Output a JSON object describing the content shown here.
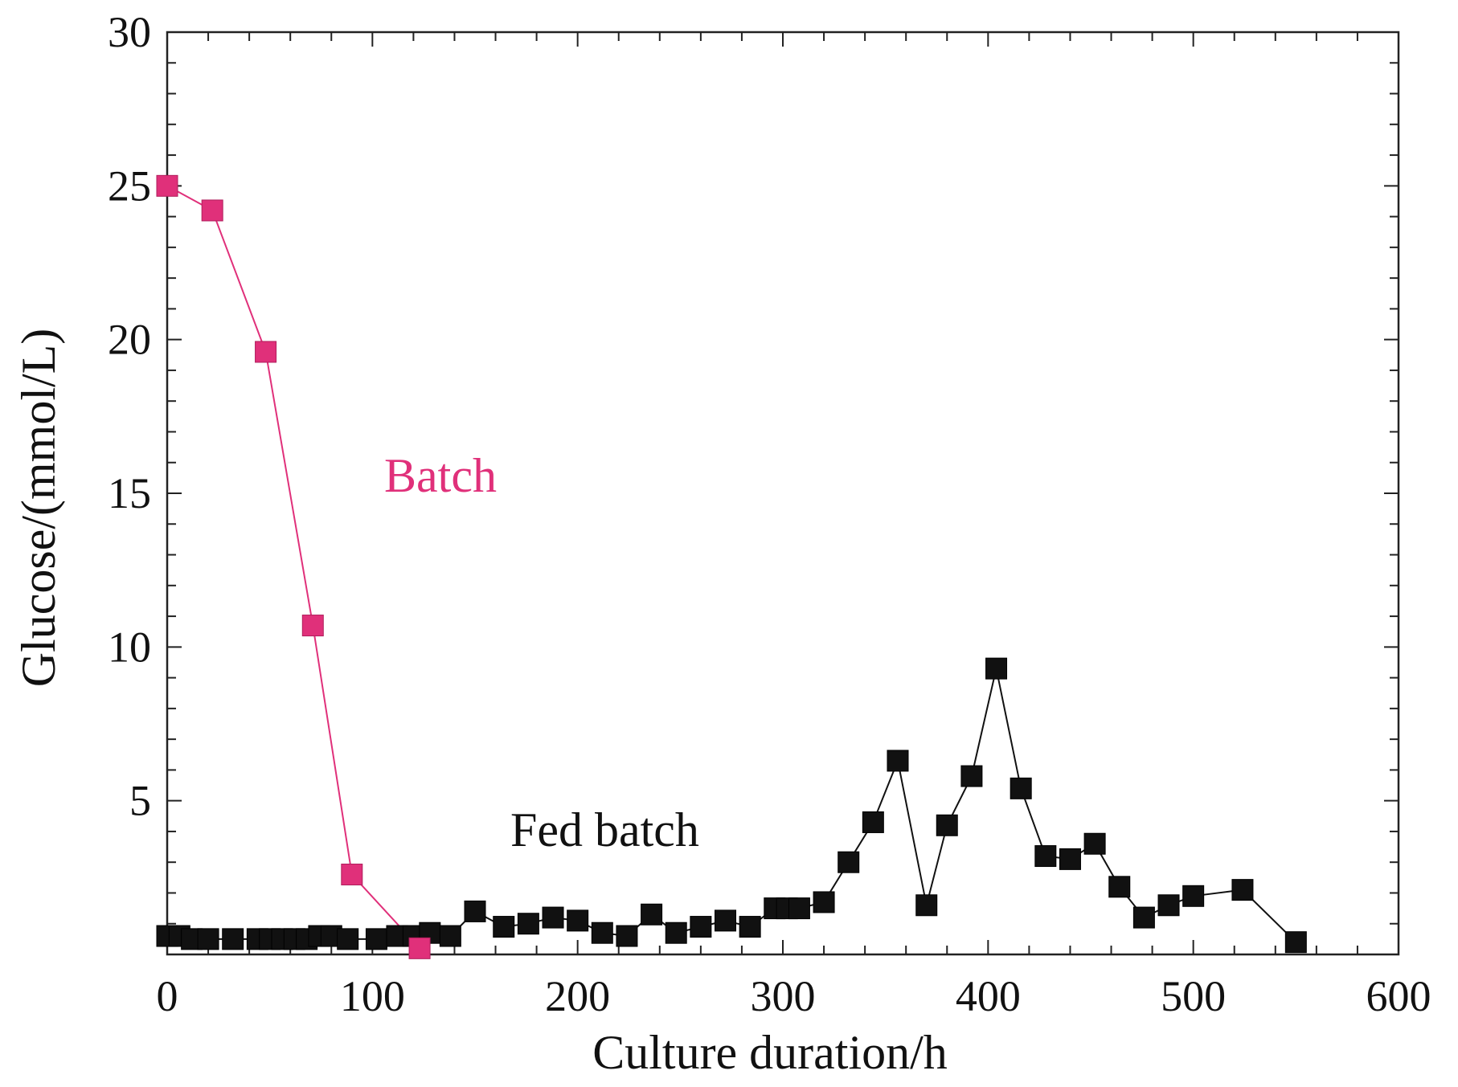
{
  "chart_data": {
    "type": "line",
    "title": "",
    "xlabel": "Culture duration/h",
    "ylabel": "Glucose/(mmol/L)",
    "xlim": [
      0,
      600
    ],
    "ylim": [
      0,
      30
    ],
    "x_ticks": [
      0,
      100,
      200,
      300,
      400,
      500,
      600
    ],
    "y_ticks": [
      5,
      10,
      15,
      20,
      25,
      30
    ],
    "grid": false,
    "legend": "inline labels",
    "series": [
      {
        "name": "Batch",
        "color": "#e0307a",
        "marker": "square",
        "x": [
          0,
          22,
          48,
          71,
          90,
          123
        ],
        "y": [
          25.0,
          24.2,
          19.6,
          10.7,
          2.6,
          0.2
        ]
      },
      {
        "name": "Fed batch",
        "color": "#111111",
        "marker": "square",
        "x": [
          0,
          6,
          12,
          20,
          32,
          44,
          50,
          56,
          62,
          68,
          74,
          80,
          88,
          102,
          112,
          120,
          128,
          138,
          150,
          164,
          176,
          188,
          200,
          212,
          224,
          236,
          248,
          260,
          272,
          284,
          296,
          302,
          308,
          320,
          332,
          344,
          356,
          370,
          380,
          392,
          404,
          416,
          428,
          440,
          452,
          464,
          476,
          488,
          500,
          524,
          550
        ],
        "y": [
          0.6,
          0.6,
          0.5,
          0.5,
          0.5,
          0.5,
          0.5,
          0.5,
          0.5,
          0.5,
          0.6,
          0.6,
          0.5,
          0.5,
          0.6,
          0.6,
          0.7,
          0.6,
          1.4,
          0.9,
          1.0,
          1.2,
          1.1,
          0.7,
          0.6,
          1.3,
          0.7,
          0.9,
          1.1,
          0.9,
          1.5,
          1.5,
          1.5,
          1.7,
          3.0,
          4.3,
          6.3,
          1.6,
          4.2,
          5.8,
          9.3,
          5.4,
          3.2,
          3.1,
          3.6,
          2.2,
          1.2,
          1.6,
          1.9,
          2.1,
          0.4
        ]
      }
    ],
    "annotations": [
      {
        "text": "Batch",
        "color": "#e0307a"
      },
      {
        "text": "Fed batch",
        "color": "#111111"
      }
    ]
  }
}
